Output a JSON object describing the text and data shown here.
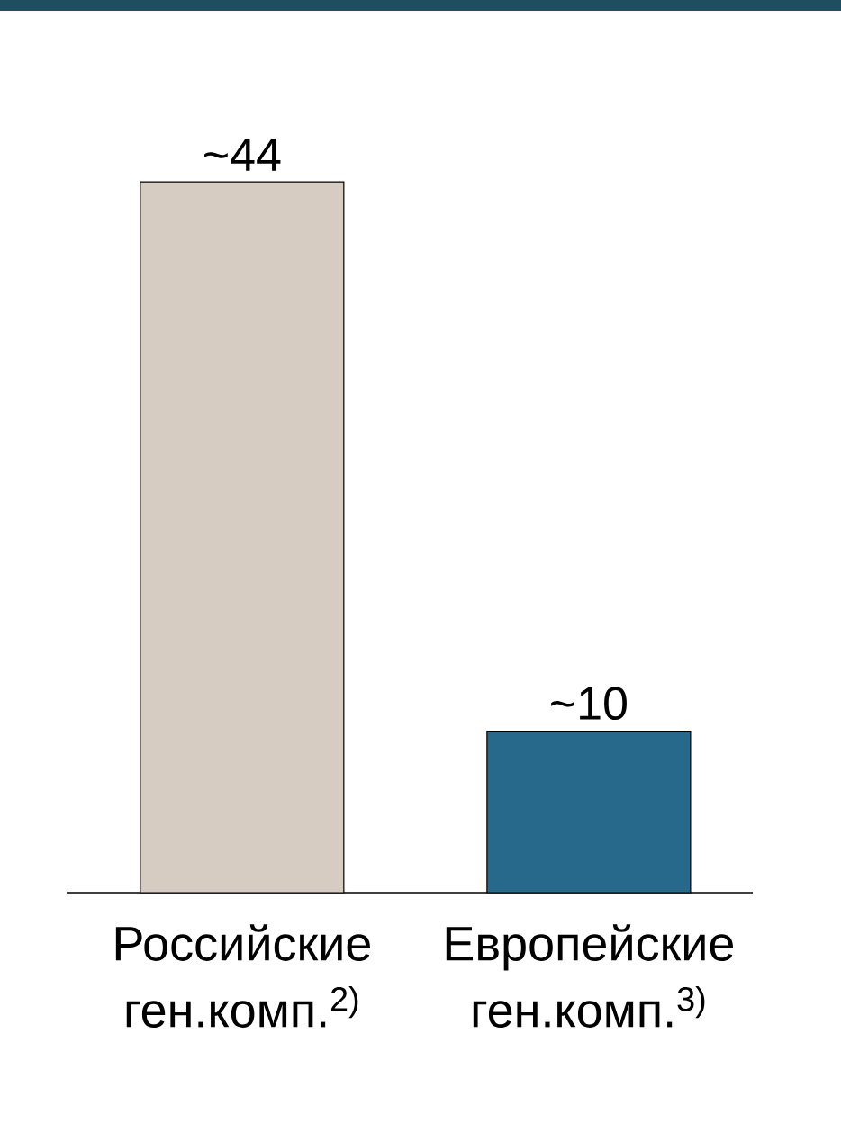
{
  "chart_data": {
    "type": "bar",
    "categories": [
      "Российские ген.комп.$^{2)}$",
      "Европейские ген.комп.$^{3)}$"
    ],
    "values": [
      44,
      10
    ],
    "colors": [
      "#d6ccc2",
      "#27698a"
    ],
    "value_labels": [
      "~44",
      "~10"
    ]
  }
}
